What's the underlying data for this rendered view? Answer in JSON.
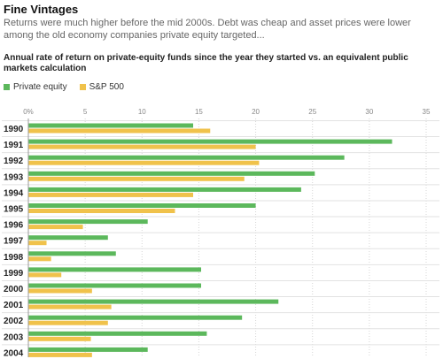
{
  "header": {
    "title": "Fine Vintages",
    "subtitle": "Returns were much higher before the mid 2000s. Debt was cheap and asset prices were lower among the old economy companies private equity targeted..."
  },
  "chart_data": {
    "type": "bar",
    "orientation": "horizontal",
    "title": "Annual rate of return on private-equity funds since the year they started vs. an equivalent public markets calculation",
    "xlabel": "",
    "ylabel": "",
    "xlim": [
      0,
      35
    ],
    "x_ticks": [
      "0%",
      "5",
      "10",
      "15",
      "20",
      "25",
      "30",
      "35"
    ],
    "grid": true,
    "legend_position": "top-left",
    "categories": [
      "1990",
      "1991",
      "1992",
      "1993",
      "1994",
      "1995",
      "1996",
      "1997",
      "1998",
      "1999",
      "2000",
      "2001",
      "2002",
      "2003",
      "2004"
    ],
    "series": [
      {
        "name": "Private equity",
        "color": "#5cb85c",
        "values": [
          14.5,
          32,
          27.8,
          25.2,
          24,
          20,
          10.5,
          7,
          7.7,
          15.2,
          15.2,
          22,
          18.8,
          15.7,
          10.5
        ]
      },
      {
        "name": "S&P 500",
        "color": "#f0c24b",
        "values": [
          16,
          20,
          20.3,
          19,
          14.5,
          12.9,
          4.8,
          1.6,
          2,
          2.9,
          5.6,
          7.3,
          7,
          5.5,
          5.6
        ]
      }
    ]
  }
}
